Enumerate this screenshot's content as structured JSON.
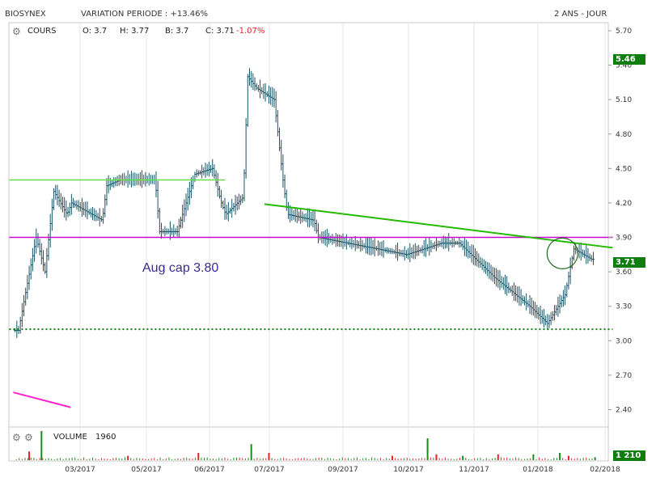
{
  "header": {
    "ticker": "BIOSYNEX",
    "variation": "VARIATION PERIODE : +13.46%",
    "period": "2 ANS - JOUR"
  },
  "price_legend": {
    "label": "COURS",
    "open": "O: 3.7",
    "high": "H: 3.77",
    "low": "B: 3.7",
    "close_label": "C: 3.71",
    "change": "-1.07%"
  },
  "volume_legend": {
    "label": "VOLUME",
    "value": "1960"
  },
  "badges": {
    "high_marker": "5.46",
    "last_price": "3.71",
    "last_volume": "1 210"
  },
  "annotation": "Aug cap 3.80",
  "colors": {
    "up": "#1a8c1a",
    "down": "#e8212a",
    "price_bars": "#1d5566",
    "badge": "#0f7d0f",
    "magenta": "#cc00cc",
    "green_line": "#22bb00",
    "light_green": "#66dd44"
  },
  "chart_data": {
    "type": "ohlc",
    "yticks": [
      "5.70",
      "5.40",
      "5.10",
      "4.80",
      "4.50",
      "4.20",
      "3.90",
      "3.60",
      "3.30",
      "3.00",
      "2.70",
      "2.40"
    ],
    "ylim": [
      2.34,
      5.76
    ],
    "xticks": [
      "03/2017",
      "05/2017",
      "06/2017",
      "07/2017",
      "09/2017",
      "10/2017",
      "11/2017",
      "01/2018",
      "02/2018"
    ],
    "price_path": [
      [
        1,
        3.09
      ],
      [
        1.5,
        3.3
      ],
      [
        3,
        3.9
      ],
      [
        4,
        3.6
      ],
      [
        5,
        4.3
      ],
      [
        6.5,
        4.1
      ],
      [
        7,
        4.2
      ],
      [
        10.5,
        4.05
      ],
      [
        11,
        4.35
      ],
      [
        12.5,
        4.4
      ],
      [
        16.5,
        4.4
      ],
      [
        17,
        3.95
      ],
      [
        19,
        3.95
      ],
      [
        21,
        4.45
      ],
      [
        23,
        4.5
      ],
      [
        24,
        4.2
      ],
      [
        24.5,
        4.1
      ],
      [
        26.5,
        4.25
      ],
      [
        27,
        5.3
      ],
      [
        28,
        5.2
      ],
      [
        30,
        5.1
      ],
      [
        31,
        4.4
      ],
      [
        31.5,
        4.1
      ],
      [
        34.5,
        4.05
      ],
      [
        35,
        3.9
      ],
      [
        45,
        3.75
      ],
      [
        49,
        3.85
      ],
      [
        51,
        3.85
      ],
      [
        53,
        3.7
      ],
      [
        55,
        3.55
      ],
      [
        59,
        3.3
      ],
      [
        61,
        3.15
      ],
      [
        63,
        3.4
      ],
      [
        64,
        3.8
      ],
      [
        66,
        3.71
      ]
    ],
    "volume_spikes": [
      {
        "x": 3.2,
        "v": 1.0,
        "c": "up"
      },
      {
        "x": 1.8,
        "v": 0.3,
        "c": "down"
      },
      {
        "x": 13,
        "v": 0.15,
        "c": "down"
      },
      {
        "x": 21,
        "v": 0.25,
        "c": "down"
      },
      {
        "x": 27,
        "v": 0.55,
        "c": "up"
      },
      {
        "x": 29,
        "v": 0.25,
        "c": "down"
      },
      {
        "x": 43,
        "v": 0.15,
        "c": "down"
      },
      {
        "x": 47,
        "v": 0.75,
        "c": "up"
      },
      {
        "x": 48,
        "v": 0.2,
        "c": "down"
      },
      {
        "x": 51,
        "v": 0.15,
        "c": "up"
      },
      {
        "x": 55,
        "v": 0.2,
        "c": "down"
      },
      {
        "x": 59,
        "v": 0.2,
        "c": "up"
      },
      {
        "x": 62,
        "v": 0.25,
        "c": "up"
      },
      {
        "x": 63,
        "v": 0.15,
        "c": "down"
      },
      {
        "x": 66,
        "v": 0.1,
        "c": "up"
      }
    ],
    "horizontal_lines": [
      {
        "y": 4.4,
        "x0": 0,
        "x1": 24,
        "color": "#66dd44",
        "style": "solid"
      },
      {
        "y": 3.9,
        "x0": 0,
        "x1": 68,
        "color": "#cc00cc",
        "style": "solid"
      },
      {
        "y": 3.1,
        "x0": 0,
        "x1": 68,
        "color": "#0f7d0f",
        "style": "dotted"
      }
    ],
    "trend_lines": [
      {
        "x0": 28.5,
        "y0": 4.19,
        "x1": 68,
        "y1": 3.81,
        "color": "#22bb00"
      },
      {
        "x0": 0,
        "y0": 2.55,
        "x1": 6.5,
        "y1": 2.42,
        "color": "#ff22cc"
      }
    ],
    "circle": {
      "x": 62.3,
      "y": 3.76
    }
  }
}
